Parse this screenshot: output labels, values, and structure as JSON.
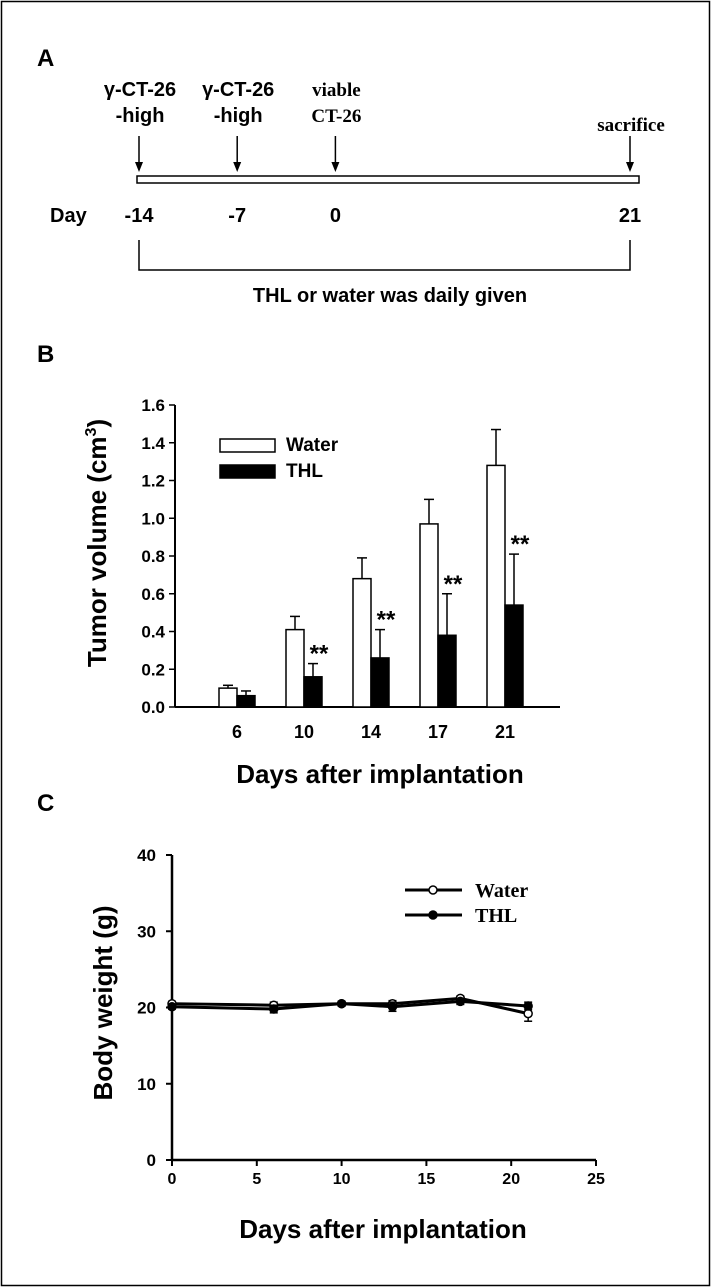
{
  "panels": {
    "a": {
      "label": "A"
    },
    "b": {
      "label": "B"
    },
    "c": {
      "label": "C"
    }
  },
  "timeline": {
    "day_label": "Day",
    "events": [
      {
        "day": -14,
        "tick": "-14",
        "lines": [
          "γ-CT-26",
          "-high"
        ],
        "font": "sans"
      },
      {
        "day": -7,
        "tick": "-7",
        "lines": [
          "γ-CT-26",
          "-high"
        ],
        "font": "sans"
      },
      {
        "day": 0,
        "tick": "0",
        "lines": [
          "viable",
          "CT-26"
        ],
        "font": "serif"
      },
      {
        "day": 21,
        "tick": "21",
        "lines": [
          "sacrifice"
        ],
        "font": "serif"
      }
    ],
    "treatment_label": "THL or water was daily given"
  },
  "chart_data": [
    {
      "type": "bar",
      "panel": "B",
      "xlabel": "Days after implantation",
      "ylabel_main": "Tumor volume (cm",
      "ylabel_sup": "3",
      "ylabel_close": ")",
      "categories": [
        "6",
        "10",
        "14",
        "17",
        "21"
      ],
      "ylim": [
        0,
        1.6
      ],
      "yticks": [
        "0.0",
        "0.2",
        "0.4",
        "0.6",
        "0.8",
        "1.0",
        "1.2",
        "1.4",
        "1.6"
      ],
      "series": [
        {
          "name": "Water",
          "fill": "#ffffff",
          "values": [
            0.1,
            0.41,
            0.68,
            0.97,
            1.28
          ],
          "errors": [
            0.015,
            0.07,
            0.11,
            0.13,
            0.19
          ]
        },
        {
          "name": "THL",
          "fill": "#000000",
          "values": [
            0.06,
            0.16,
            0.26,
            0.38,
            0.54
          ],
          "errors": [
            0.025,
            0.07,
            0.15,
            0.22,
            0.27
          ]
        }
      ],
      "annotations": [
        "",
        "**",
        "**",
        "**",
        "**"
      ],
      "legend": "top-left"
    },
    {
      "type": "line",
      "panel": "C",
      "xlabel": "Days after implantation",
      "ylabel": "Body weight (g)",
      "xlim": [
        0,
        25
      ],
      "ylim": [
        0,
        40
      ],
      "xticks": [
        "0",
        "5",
        "10",
        "15",
        "20",
        "25"
      ],
      "yticks": [
        "0",
        "10",
        "20",
        "30",
        "40"
      ],
      "series": [
        {
          "name": "Water",
          "marker": "open-circle",
          "x": [
            0,
            6,
            10,
            13,
            17,
            21
          ],
          "y": [
            20.5,
            20.3,
            20.5,
            20.5,
            21.2,
            19.2
          ],
          "errors": [
            0.3,
            0.4,
            0.3,
            0.4,
            0.3,
            1.0
          ]
        },
        {
          "name": "THL",
          "marker": "filled-circle",
          "x": [
            0,
            6,
            10,
            13,
            17,
            21
          ],
          "y": [
            20.1,
            19.8,
            20.5,
            20.1,
            20.8,
            20.2
          ],
          "errors": [
            0.3,
            0.5,
            0.3,
            0.6,
            0.4,
            0.5
          ]
        }
      ],
      "legend": "top-right"
    }
  ]
}
